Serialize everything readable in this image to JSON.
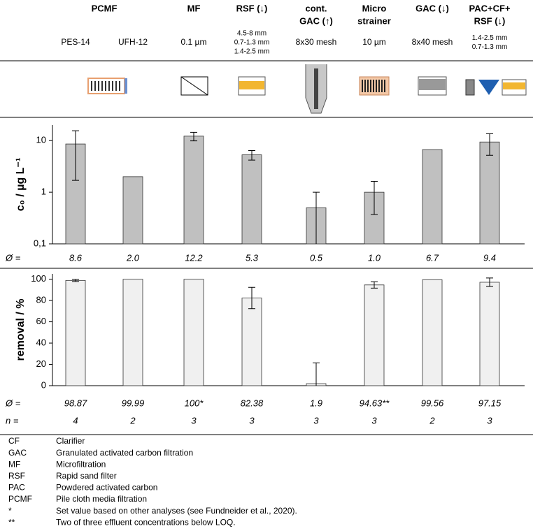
{
  "header": {
    "groups": [
      {
        "label": [
          "PCMF"
        ],
        "subs": [
          [
            "PES-14"
          ],
          [
            "UFH-12"
          ]
        ]
      },
      {
        "label": [
          "MF"
        ],
        "subs": [
          [
            "0.1 µm"
          ]
        ]
      },
      {
        "label": [
          "RSF (↓)"
        ],
        "subs": [
          [
            "4.5-8 mm",
            "0.7-1.3 mm",
            "1.4-2.5 mm"
          ]
        ]
      },
      {
        "label": [
          "cont.",
          "GAC (↑)"
        ],
        "subs": [
          [
            "8x30 mesh"
          ]
        ]
      },
      {
        "label": [
          "Micro",
          "strainer"
        ],
        "subs": [
          [
            "10 µm"
          ]
        ]
      },
      {
        "label": [
          "GAC (↓)"
        ],
        "subs": [
          [
            "8x40 mesh"
          ]
        ]
      },
      {
        "label": [
          "PAC+CF+",
          "RSF (↓)"
        ],
        "subs": [
          [
            "1.4-2.5 mm",
            "0.7-1.3 mm"
          ]
        ]
      }
    ]
  },
  "chart_data": [
    {
      "type": "bar",
      "ylabel": "c₀ / µg L⁻¹",
      "log_scale": true,
      "color": "#c0c0c0",
      "ylim": [
        0.1,
        20
      ],
      "yticks": [
        {
          "value": 0.1,
          "label": "0,1"
        },
        1,
        10
      ],
      "values": [
        8.6,
        2.0,
        12.2,
        5.3,
        0.5,
        1.0,
        6.7,
        9.4
      ],
      "errors": [
        6.9,
        null,
        2.3,
        1.1,
        0.5,
        0.63,
        null,
        4.2
      ],
      "summary_label": "Ø =",
      "value_labels": [
        "8.6",
        "2.0",
        "12.2",
        "5.3",
        "0.5",
        "1.0",
        "6.7",
        "9.4"
      ]
    },
    {
      "type": "bar",
      "ylabel": "removal / %",
      "log_scale": false,
      "color": "#f0f0f0",
      "ylim": [
        0,
        105
      ],
      "yticks": [
        0,
        20,
        40,
        60,
        80,
        100
      ],
      "values": [
        98.87,
        99.99,
        100,
        82.38,
        1.9,
        94.63,
        99.56,
        97.15
      ],
      "errors": [
        1,
        null,
        null,
        10,
        19.5,
        3,
        null,
        4
      ],
      "summary_label": "Ø =",
      "value_labels": [
        "98.87",
        "99.99",
        "100*",
        "82.38",
        "1.9",
        "94.63**",
        "99.56",
        "97.15"
      ],
      "count_label": "n =",
      "counts": [
        4,
        2,
        3,
        3,
        3,
        3,
        2,
        3
      ]
    }
  ],
  "legend": [
    [
      "CF",
      "Clarifier"
    ],
    [
      "GAC",
      "Granulated activated carbon filtration"
    ],
    [
      "MF",
      "Microfiltration"
    ],
    [
      "RSF",
      "Rapid sand filter"
    ],
    [
      "PAC",
      "Powdered activated carbon"
    ],
    [
      "PCMF",
      "Pile cloth media filtration"
    ],
    [
      "*",
      "Set value based on other analyses (see Fundneider et al., 2020)."
    ],
    [
      "**",
      "Two of three effluent concentrations below LOQ."
    ]
  ]
}
